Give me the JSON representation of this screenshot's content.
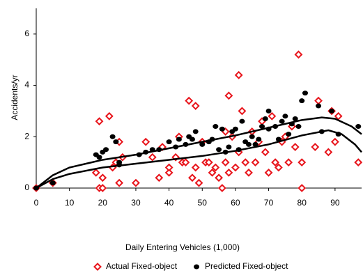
{
  "chart_data": {
    "type": "scatter",
    "x_label": "Daily Entering Vehicles (1,000)",
    "y_label": "Accidents/yr",
    "xlim": [
      0,
      98
    ],
    "xticks": [
      0,
      10,
      20,
      30,
      40,
      50,
      60,
      70,
      80,
      90
    ],
    "ylim": [
      0,
      7
    ],
    "yticks": [
      0,
      2,
      4,
      6
    ],
    "legend": "bottom",
    "series": [
      {
        "name": "Actual Fixed-object",
        "color": "#e8141b",
        "marker": "diamond",
        "x": [
          0,
          5,
          18,
          19,
          19,
          20,
          20,
          22,
          23,
          24,
          25,
          25,
          26,
          30,
          33,
          35,
          37,
          38,
          40,
          40,
          42,
          43,
          44,
          45,
          46,
          47,
          48,
          48,
          49,
          50,
          51,
          52,
          53,
          54,
          55,
          56,
          57,
          57,
          58,
          58,
          59,
          60,
          61,
          61,
          62,
          63,
          64,
          65,
          66,
          67,
          68,
          69,
          70,
          71,
          72,
          73,
          74,
          75,
          76,
          77,
          78,
          79,
          80,
          80,
          84,
          85,
          88,
          89,
          90,
          91,
          97
        ],
        "values": [
          0,
          0.2,
          0.6,
          2.6,
          0,
          0,
          0.4,
          2.8,
          0.8,
          1,
          1.8,
          0.2,
          1.2,
          0.2,
          1.8,
          1.2,
          0.4,
          1.6,
          0.6,
          0.8,
          1.2,
          2,
          1,
          1,
          3.4,
          0.4,
          3.2,
          0.8,
          0.2,
          1.8,
          1,
          1,
          0.6,
          0.8,
          0.4,
          0,
          1,
          2.2,
          3.6,
          0.6,
          2,
          0.8,
          4.4,
          1.4,
          3,
          1,
          0.6,
          2.2,
          1,
          1.8,
          2.6,
          1.4,
          0.6,
          2.8,
          1,
          0.8,
          1.8,
          2,
          1,
          2.4,
          1.6,
          5.2,
          0,
          1,
          1.6,
          3.4,
          1.4,
          3,
          1.8,
          2.8,
          1
        ]
      },
      {
        "name": "Predicted Fixed-object",
        "color": "#000000",
        "marker": "dot",
        "x": [
          0,
          5,
          18,
          19,
          20,
          21,
          23,
          24,
          25,
          25,
          31,
          33,
          35,
          37,
          40,
          42,
          43,
          45,
          46,
          47,
          48,
          50,
          52,
          53,
          54,
          55,
          56,
          57,
          58,
          59,
          60,
          61,
          62,
          63,
          64,
          65,
          66,
          67,
          68,
          69,
          70,
          70,
          72,
          73,
          74,
          75,
          76,
          77,
          78,
          79,
          80,
          81,
          85,
          86,
          89,
          91,
          97
        ],
        "values": [
          0,
          0.2,
          1.3,
          1.2,
          1.4,
          1.5,
          2,
          1.8,
          0.9,
          1,
          1.3,
          1.4,
          1.5,
          1.5,
          1.8,
          1.6,
          1.9,
          1.7,
          2,
          1.9,
          2.2,
          1.7,
          1.8,
          1.9,
          2.4,
          1.5,
          2.3,
          1.4,
          1.6,
          2.2,
          2.3,
          1.5,
          2.6,
          1.8,
          1.7,
          2,
          1.7,
          1.9,
          2.4,
          2.7,
          3,
          2.3,
          2.4,
          1.9,
          2.6,
          2.8,
          2.1,
          2.5,
          2.7,
          2.4,
          3.4,
          3.7,
          3.2,
          2.2,
          3,
          2.1,
          2.4
        ]
      },
      {
        "color": "#000000",
        "marker": "line",
        "x": [
          0,
          5,
          10,
          20,
          30,
          40,
          50,
          60,
          70,
          80,
          86,
          90,
          95,
          98
        ],
        "values": [
          0,
          0.5,
          0.8,
          1.1,
          1.3,
          1.55,
          1.8,
          2.05,
          2.35,
          2.65,
          2.75,
          2.7,
          2.4,
          2.1
        ]
      },
      {
        "color": "#000000",
        "marker": "line",
        "x": [
          0,
          5,
          10,
          20,
          30,
          40,
          50,
          60,
          70,
          80,
          88,
          92,
          96,
          98
        ],
        "values": [
          0,
          0.35,
          0.55,
          0.8,
          0.95,
          1.1,
          1.25,
          1.45,
          1.7,
          2.05,
          2.25,
          2.1,
          1.7,
          1.4
        ]
      }
    ]
  }
}
